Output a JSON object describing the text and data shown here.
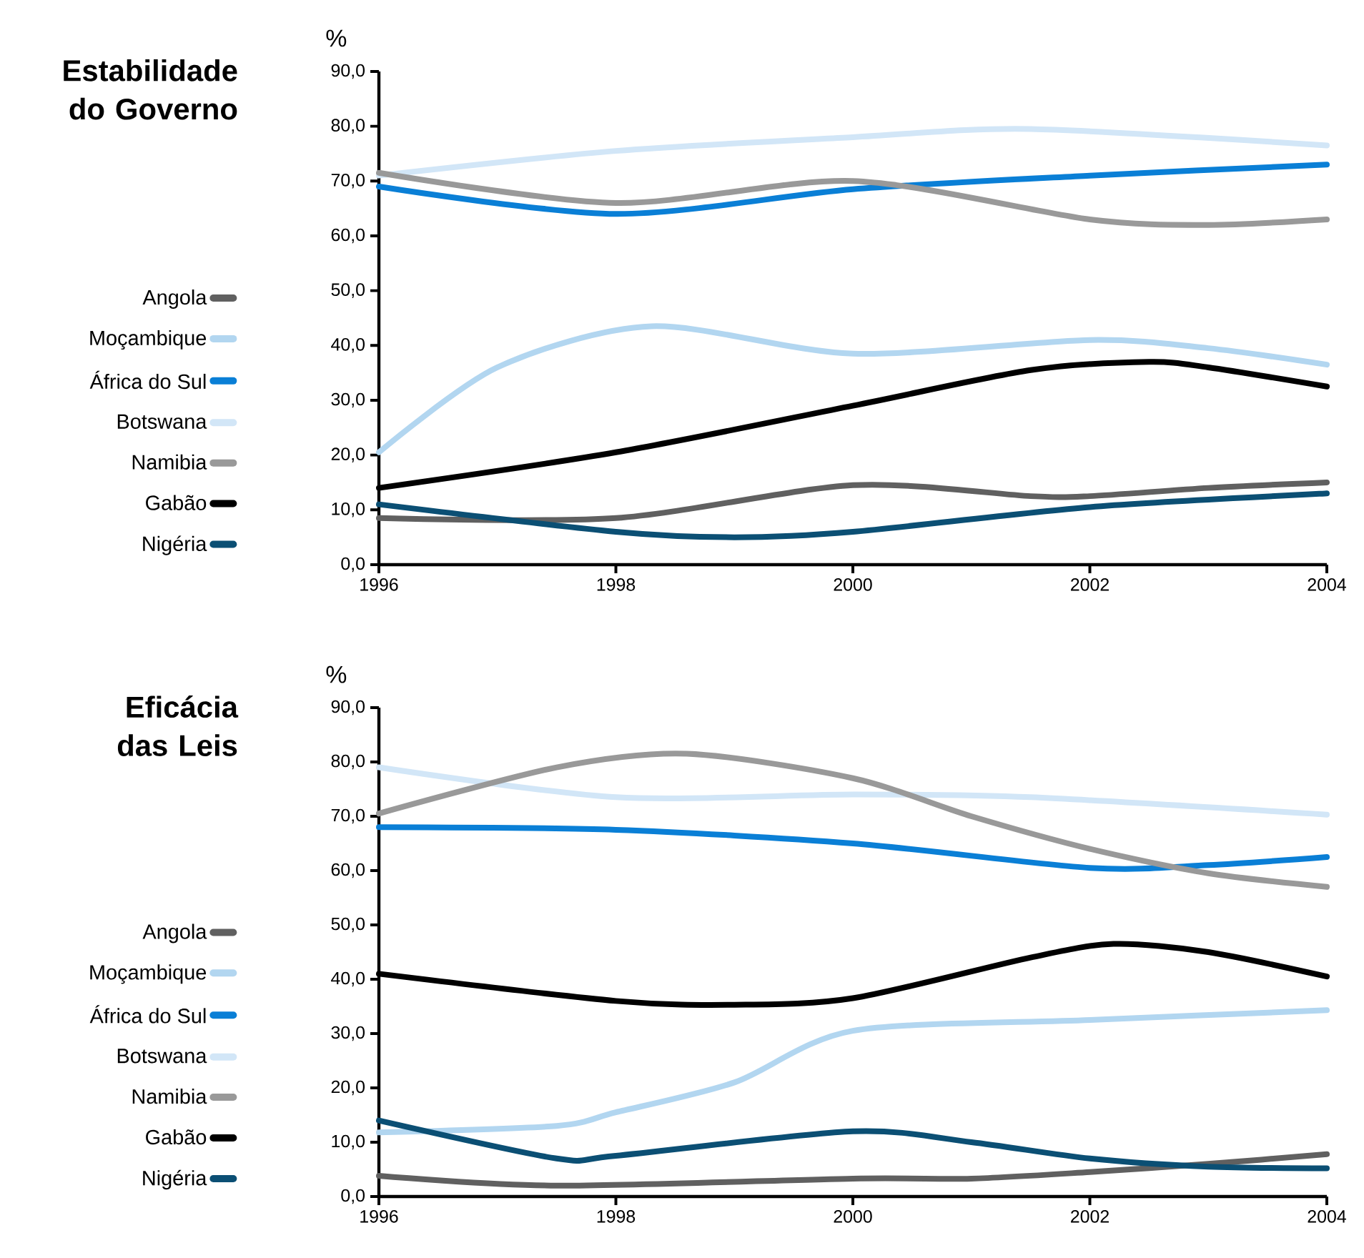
{
  "chart_data": [
    {
      "type": "line",
      "title": "Estabilidade do Governo",
      "ylabel": "%",
      "xlim": [
        1996,
        2004
      ],
      "ylim": [
        0,
        90
      ],
      "xticks": [
        1996,
        1998,
        2000,
        2002,
        2004
      ],
      "yticks": [
        {
          "value": 0,
          "label": "0,0"
        },
        {
          "value": 10,
          "label": "10,0"
        },
        {
          "value": 20,
          "label": "20,0"
        },
        {
          "value": 30,
          "label": "30,0"
        },
        {
          "value": 40,
          "label": "40,0"
        },
        {
          "value": 50,
          "label": "50,0"
        },
        {
          "value": 60,
          "label": "60,0"
        },
        {
          "value": 70,
          "label": "70,0"
        },
        {
          "value": 80,
          "label": "80,0"
        },
        {
          "value": 90,
          "label": "90,0"
        }
      ],
      "legend": "left",
      "series": [
        {
          "name": "Angola",
          "color": "#606060",
          "x": [
            1996,
            1998,
            2000,
            2001.5,
            2002,
            2003,
            2004
          ],
          "values": [
            8.5,
            8.5,
            14.5,
            12.5,
            12.5,
            14,
            15
          ]
        },
        {
          "name": "Moçambique",
          "color": "#b2d6f0",
          "x": [
            1996,
            1997,
            1998.3,
            2000,
            2002,
            2003,
            2004
          ],
          "values": [
            20.5,
            36,
            43.5,
            38.5,
            41,
            39.5,
            36.5
          ]
        },
        {
          "name": "África do Sul",
          "color": "#0a7fd6",
          "x": [
            1996,
            1998,
            2000,
            2002,
            2004
          ],
          "values": [
            69,
            64,
            68.5,
            71,
            73
          ]
        },
        {
          "name": "Botswana",
          "color": "#d2e6f7",
          "x": [
            1996,
            1998,
            2000,
            2001.5,
            2004
          ],
          "values": [
            71,
            75.5,
            78,
            79.5,
            76.5
          ]
        },
        {
          "name": "Namibia",
          "color": "#999999",
          "x": [
            1996,
            1998,
            2000,
            2002,
            2003,
            2004
          ],
          "values": [
            71.5,
            66,
            70,
            63,
            62,
            63
          ]
        },
        {
          "name": "Gabão",
          "color": "#000000",
          "x": [
            1996,
            1998,
            2000,
            2001.5,
            2002.5,
            2003,
            2004
          ],
          "values": [
            14,
            20.5,
            29,
            35.5,
            37,
            36,
            32.5
          ]
        },
        {
          "name": "Nigéria",
          "color": "#0b4f74",
          "x": [
            1996,
            1998,
            1999,
            2000,
            2002,
            2004
          ],
          "values": [
            11,
            6,
            5,
            6,
            10.5,
            13
          ]
        }
      ]
    },
    {
      "type": "line",
      "title": "Eficácia das Leis",
      "ylabel": "%",
      "xlim": [
        1996,
        2004
      ],
      "ylim": [
        0,
        90
      ],
      "xticks": [
        1996,
        1998,
        2000,
        2002,
        2004
      ],
      "yticks": [
        {
          "value": 0,
          "label": "0,0"
        },
        {
          "value": 10,
          "label": "10,0"
        },
        {
          "value": 20,
          "label": "20,0"
        },
        {
          "value": 30,
          "label": "30,0"
        },
        {
          "value": 40,
          "label": "40,0"
        },
        {
          "value": 50,
          "label": "50,0"
        },
        {
          "value": 60,
          "label": "60,0"
        },
        {
          "value": 70,
          "label": "70,0"
        },
        {
          "value": 80,
          "label": "80,0"
        },
        {
          "value": 90,
          "label": "90,0"
        }
      ],
      "legend": "left",
      "series": [
        {
          "name": "Angola",
          "color": "#606060",
          "x": [
            1996,
            1997.5,
            2000,
            2001,
            2002,
            2003,
            2004
          ],
          "values": [
            3.8,
            2,
            3.3,
            3.3,
            4.5,
            6,
            7.8
          ]
        },
        {
          "name": "Moçambique",
          "color": "#b2d6f0",
          "x": [
            1996,
            1997.5,
            1998,
            1999,
            2000,
            2002,
            2004
          ],
          "values": [
            11.8,
            13,
            15.5,
            21,
            30.5,
            32.5,
            34.3
          ]
        },
        {
          "name": "África do Sul",
          "color": "#0a7fd6",
          "x": [
            1996,
            1998,
            2000,
            2002,
            2003,
            2004
          ],
          "values": [
            68,
            67.5,
            65,
            60.5,
            61,
            62.5
          ]
        },
        {
          "name": "Botswana",
          "color": "#d2e6f7",
          "x": [
            1996,
            1998,
            2000,
            2001.5,
            2004
          ],
          "values": [
            79,
            73.5,
            74,
            73.5,
            70.3
          ]
        },
        {
          "name": "Namibia",
          "color": "#999999",
          "x": [
            1996,
            1997.5,
            1998.6,
            2000,
            2001,
            2002,
            2003,
            2004
          ],
          "values": [
            70.5,
            79,
            81.5,
            77,
            70,
            64,
            59.5,
            57
          ]
        },
        {
          "name": "Gabão",
          "color": "#000000",
          "x": [
            1996,
            1998,
            1999,
            2000,
            2001.5,
            2002.2,
            2003,
            2004
          ],
          "values": [
            41,
            36,
            35.3,
            36.5,
            44,
            46.5,
            45,
            40.5
          ]
        },
        {
          "name": "Nigéria",
          "color": "#0b4f74",
          "x": [
            1996,
            1997.5,
            1998,
            2000,
            2001,
            2002,
            2003,
            2004
          ],
          "values": [
            14,
            7,
            7.5,
            12,
            10,
            7,
            5.5,
            5.2
          ]
        }
      ]
    }
  ]
}
